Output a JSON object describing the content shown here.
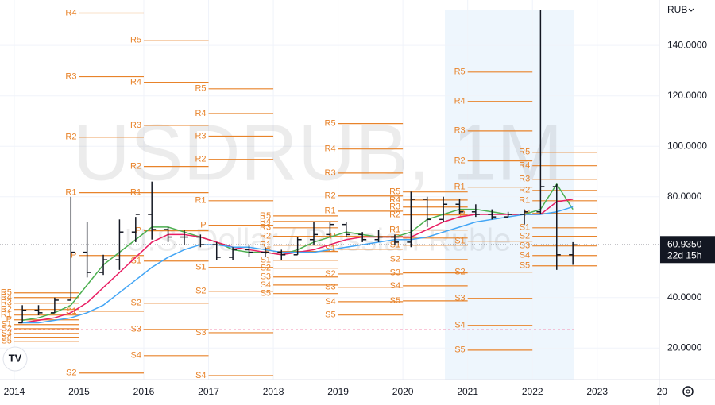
{
  "chart_data": {
    "type": "ohlc",
    "watermark_symbol": "USDRUB, 1M",
    "watermark_name": "U.S. Dollar / Russian Ruble",
    "currency": "RUB",
    "last_price": {
      "value": 60.935,
      "label": "60.9350"
    },
    "countdown": "22d 15h",
    "bar_color": "#131722",
    "x": [
      2014.125,
      2014.375,
      2014.625,
      2014.875,
      2015.125,
      2015.375,
      2015.625,
      2015.875,
      2016.125,
      2016.375,
      2016.625,
      2016.875,
      2017.125,
      2017.375,
      2017.625,
      2017.875,
      2018.125,
      2018.375,
      2018.625,
      2018.875,
      2019.125,
      2019.375,
      2019.625,
      2019.875,
      2020.125,
      2020.375,
      2020.625,
      2020.875,
      2021.125,
      2021.375,
      2021.625,
      2021.875,
      2022.125,
      2022.375,
      2022.625
    ],
    "open": [
      30,
      35,
      34,
      39,
      58,
      50,
      55,
      66,
      73,
      67,
      64,
      64,
      61,
      56,
      59,
      58,
      58,
      57,
      63,
      65,
      69,
      65,
      63,
      64,
      62,
      79,
      71,
      77,
      74,
      73,
      72,
      73,
      74,
      84,
      57
    ],
    "high": [
      37,
      37,
      40,
      80,
      70,
      57,
      71,
      72,
      86,
      68,
      67,
      65,
      62,
      60,
      61,
      60,
      59,
      64,
      70,
      70,
      70,
      66,
      67,
      65,
      82,
      80,
      80,
      79,
      77,
      75,
      74,
      75,
      154,
      85,
      62
    ],
    "low": [
      30,
      33,
      34,
      39,
      48,
      49,
      51,
      62,
      63,
      62,
      61,
      60,
      55,
      55,
      56,
      56,
      55,
      57,
      61,
      64,
      64,
      62,
      62,
      61,
      60,
      68,
      70,
      73,
      72,
      71,
      72,
      69,
      73,
      51,
      53
    ],
    "close": [
      35,
      34,
      39,
      58,
      50,
      55,
      66,
      73,
      67,
      64,
      64,
      61,
      56,
      59,
      58,
      58,
      57,
      63,
      65,
      69,
      65,
      63,
      64,
      62,
      79,
      71,
      77,
      74,
      73,
      72,
      73,
      74,
      84,
      57,
      60.935
    ],
    "moving_averages": [
      {
        "color": "#4caf50",
        "values": [
          31,
          32,
          34,
          37,
          45,
          53,
          58,
          63,
          68,
          68,
          66,
          64,
          62,
          59,
          58,
          58,
          57,
          59,
          62,
          64,
          66,
          65,
          64,
          64,
          66,
          71,
          73,
          75,
          75,
          74,
          73,
          73,
          75,
          85,
          75
        ]
      },
      {
        "color": "#e91e63",
        "values": [
          30,
          31,
          32,
          34,
          38,
          44,
          50,
          56,
          62,
          65,
          65,
          64,
          62,
          60,
          59,
          58,
          57,
          58,
          59,
          61,
          63,
          64,
          64,
          64,
          64,
          67,
          70,
          72,
          73,
          73,
          73,
          73,
          73,
          78,
          79
        ]
      },
      {
        "color": "#42a5f5",
        "values": [
          30,
          30,
          31,
          32,
          34,
          37,
          42,
          47,
          52,
          56,
          59,
          61,
          61,
          60,
          60,
          59,
          58,
          58,
          58,
          59,
          60,
          61,
          62,
          63,
          63,
          64,
          66,
          68,
          70,
          71,
          72,
          73,
          73,
          74,
          76
        ]
      }
    ],
    "pivots": {
      "color": "#e8832a",
      "years": [
        2014,
        2015,
        2016,
        2017,
        2018,
        2019,
        2020,
        2021,
        2022
      ],
      "series": [
        {
          "name": "R5",
          "values": [
            41.9,
            null,
            142,
            122.8,
            72.4,
            109,
            81.9,
            129.4,
            97.6
          ]
        },
        {
          "name": "R4",
          "values": [
            40,
            152.8,
            125.4,
            113,
            70.2,
            98.9,
            78.7,
            117.8,
            92.3
          ]
        },
        {
          "name": "R3",
          "values": [
            37.8,
            127.6,
            108.3,
            104,
            67.7,
            89.4,
            75.9,
            106.1,
            86.9
          ]
        },
        {
          "name": "R2",
          "values": [
            35.3,
            103.6,
            92,
            94.8,
            64.3,
            80.3,
            72.8,
            94.2,
            82.5
          ]
        },
        {
          "name": "R1",
          "values": [
            33.1,
            81.6,
            81.6,
            78.4,
            60.8,
            74.3,
            66.8,
            83.8,
            78.4
          ]
        },
        {
          "name": "P",
          "values": [
            31.2,
            56.7,
            66.5,
            68.7,
            58.3,
            64.3,
            63.6,
            73.1,
            73.4
          ]
        },
        {
          "name": "S1",
          "values": [
            29.3,
            34.6,
            54.5,
            52,
            54.8,
            59.2,
            60.8,
            62.4,
            67.7
          ]
        },
        {
          "name": "S2",
          "values": [
            27.7,
            10.1,
            37.8,
            42.5,
            51.7,
            49.4,
            55.1,
            50.1,
            64.3
          ]
        },
        {
          "name": "S3",
          "values": [
            25.8,
            null,
            27.4,
            26.1,
            48.2,
            44.1,
            49.8,
            39.7,
            60.5
          ]
        },
        {
          "name": "S4",
          "values": [
            24.3,
            null,
            17,
            9.1,
            45,
            38.4,
            44.7,
            29,
            56.7
          ]
        },
        {
          "name": "S5",
          "values": [
            22.7,
            null,
            null,
            null,
            41.6,
            33.1,
            38.7,
            19.2,
            52.6
          ]
        }
      ]
    },
    "xlim": [
      2013.78,
      2023.96
    ],
    "ylim": [
      7.5,
      158
    ],
    "xticks": [
      2014,
      2015,
      2016,
      2017,
      2018,
      2019,
      2020,
      2021,
      2022,
      2023,
      {
        "value": 2024,
        "label": "20"
      }
    ],
    "yticks": [
      {
        "value": 20,
        "label": "20.0000"
      },
      {
        "value": 40,
        "label": "40.0000"
      },
      {
        "value": 80,
        "label": "80.0000"
      },
      {
        "value": 100,
        "label": "100.0000"
      },
      {
        "value": 120,
        "label": "120.0000"
      },
      {
        "value": 140,
        "label": "140.0000"
      }
    ],
    "grid": true
  }
}
